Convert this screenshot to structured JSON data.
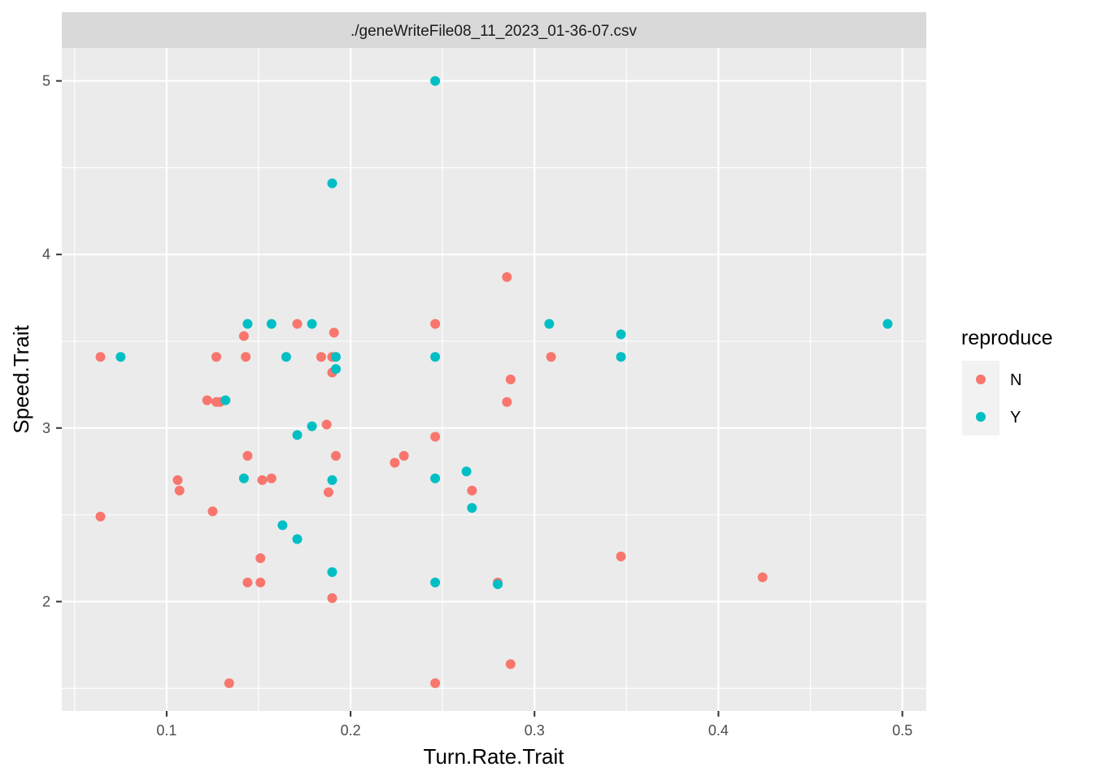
{
  "chart_data": {
    "type": "scatter",
    "facet_title": "./geneWriteFile08_11_2023_01-36-07.csv",
    "xlabel": "Turn.Rate.Trait",
    "ylabel": "Speed.Trait",
    "xlim": [
      0.043,
      0.513
    ],
    "ylim": [
      1.37,
      5.19
    ],
    "x_ticks": [
      0.1,
      0.2,
      0.3,
      0.4,
      0.5
    ],
    "x_tick_labels": [
      "0.1",
      "0.2",
      "0.3",
      "0.4",
      "0.5"
    ],
    "y_ticks": [
      2,
      3,
      4,
      5
    ],
    "y_tick_labels": [
      "2",
      "3",
      "4",
      "5"
    ],
    "grid": true,
    "legend": {
      "title": "reproduce",
      "position": "right",
      "entries": [
        "N",
        "Y"
      ]
    },
    "colors": {
      "N": "#F8766D",
      "Y": "#00BFC4",
      "panel": "#EBEBEB",
      "strip": "#D9D9D9",
      "grid": "#FFFFFF"
    },
    "series": [
      {
        "name": "N",
        "points": [
          [
            0.064,
            3.41
          ],
          [
            0.064,
            2.49
          ],
          [
            0.106,
            2.7
          ],
          [
            0.107,
            2.64
          ],
          [
            0.122,
            3.16
          ],
          [
            0.125,
            2.52
          ],
          [
            0.127,
            3.41
          ],
          [
            0.127,
            3.15
          ],
          [
            0.129,
            3.15
          ],
          [
            0.134,
            1.53
          ],
          [
            0.142,
            3.53
          ],
          [
            0.143,
            3.41
          ],
          [
            0.144,
            2.84
          ],
          [
            0.144,
            2.11
          ],
          [
            0.151,
            2.25
          ],
          [
            0.151,
            2.11
          ],
          [
            0.152,
            2.7
          ],
          [
            0.157,
            2.71
          ],
          [
            0.171,
            3.6
          ],
          [
            0.184,
            3.41
          ],
          [
            0.187,
            3.02
          ],
          [
            0.188,
            2.63
          ],
          [
            0.19,
            3.41
          ],
          [
            0.19,
            3.32
          ],
          [
            0.19,
            2.02
          ],
          [
            0.191,
            3.55
          ],
          [
            0.192,
            2.84
          ],
          [
            0.224,
            2.8
          ],
          [
            0.229,
            2.84
          ],
          [
            0.246,
            3.6
          ],
          [
            0.246,
            2.95
          ],
          [
            0.246,
            1.53
          ],
          [
            0.266,
            2.64
          ],
          [
            0.28,
            2.11
          ],
          [
            0.285,
            3.87
          ],
          [
            0.285,
            3.15
          ],
          [
            0.287,
            3.28
          ],
          [
            0.287,
            1.64
          ],
          [
            0.309,
            3.41
          ],
          [
            0.347,
            2.26
          ],
          [
            0.424,
            2.14
          ]
        ]
      },
      {
        "name": "Y",
        "points": [
          [
            0.075,
            3.41
          ],
          [
            0.132,
            3.16
          ],
          [
            0.142,
            2.71
          ],
          [
            0.144,
            3.6
          ],
          [
            0.157,
            3.6
          ],
          [
            0.163,
            2.44
          ],
          [
            0.165,
            3.41
          ],
          [
            0.171,
            2.96
          ],
          [
            0.171,
            2.36
          ],
          [
            0.179,
            3.6
          ],
          [
            0.179,
            3.01
          ],
          [
            0.19,
            4.41
          ],
          [
            0.19,
            2.7
          ],
          [
            0.19,
            2.17
          ],
          [
            0.192,
            3.41
          ],
          [
            0.192,
            3.34
          ],
          [
            0.246,
            5.0
          ],
          [
            0.246,
            3.41
          ],
          [
            0.246,
            2.71
          ],
          [
            0.246,
            2.11
          ],
          [
            0.263,
            2.75
          ],
          [
            0.266,
            2.54
          ],
          [
            0.28,
            2.1
          ],
          [
            0.308,
            3.6
          ],
          [
            0.347,
            3.54
          ],
          [
            0.347,
            3.41
          ],
          [
            0.492,
            3.6
          ]
        ]
      }
    ]
  }
}
